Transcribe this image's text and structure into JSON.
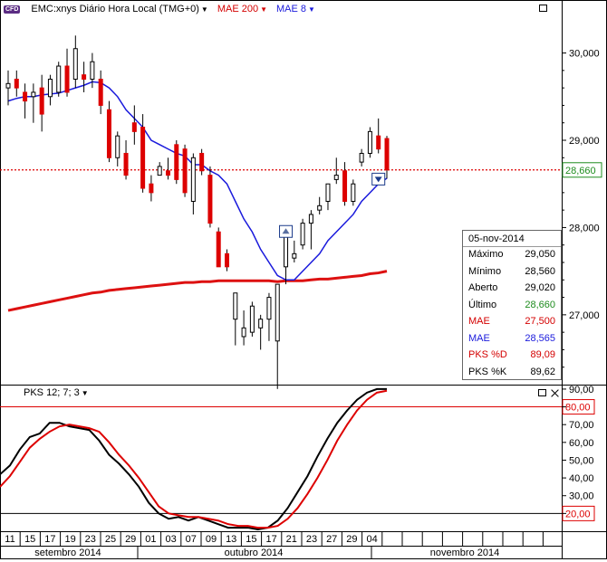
{
  "header": {
    "symbol_badge": "CFD",
    "title": "EMC:xnys Diário Hora Local (TMG+0)",
    "indicator1": "MAE 200",
    "indicator2": "MAE 8"
  },
  "info_panel": {
    "date": "05-nov-2014",
    "rows": [
      {
        "label": "Máximo",
        "value": "29,050",
        "label_color": "#000000",
        "value_color": "#000000"
      },
      {
        "label": "Mínimo",
        "value": "28,560",
        "label_color": "#000000",
        "value_color": "#000000"
      },
      {
        "label": "Aberto",
        "value": "29,020",
        "label_color": "#000000",
        "value_color": "#000000"
      },
      {
        "label": "Último",
        "value": "28,660",
        "label_color": "#000000",
        "value_color": "#1e8c1e"
      },
      {
        "label": "MAE",
        "value": "27,500",
        "label_color": "#d40000",
        "value_color": "#d40000"
      },
      {
        "label": "MAE",
        "value": "28,565",
        "label_color": "#1a1adc",
        "value_color": "#1a1adc"
      },
      {
        "label": "PKS %D",
        "value": "89,09",
        "label_color": "#d40000",
        "value_color": "#d40000"
      },
      {
        "label": "PKS %K",
        "value": "89,62",
        "label_color": "#000000",
        "value_color": "#000000"
      }
    ]
  },
  "sub_header": {
    "label": "PKS 12; 7; 3"
  },
  "colors": {
    "up": "#ffffff",
    "down": "#dd0000",
    "mae200": "#dd1111",
    "mae8": "#1a1adc",
    "pk": "#000000",
    "pd": "#dd0000",
    "last_price": "#1e8c1e"
  },
  "chart_data": [
    {
      "type": "candlestick",
      "ylim": [
        26.2,
        30.4
      ],
      "yticks": [
        "30,000",
        "29,000",
        "28,000",
        "27,000"
      ],
      "ytick_values": [
        30.0,
        29.0,
        28.0,
        27.0
      ],
      "last_price_label": "28,660",
      "last_price": 28.66,
      "x_labels": [
        "11",
        "15",
        "17",
        "19",
        "23",
        "25",
        "29",
        "01",
        "03",
        "07",
        "09",
        "13",
        "15",
        "17",
        "21",
        "23",
        "27",
        "29",
        "04"
      ],
      "months": [
        "setembro 2014",
        "outubro 2014",
        "novembro 2014"
      ],
      "candles": [
        {
          "o": 29.6,
          "h": 29.8,
          "l": 29.4,
          "c": 29.65
        },
        {
          "o": 29.7,
          "h": 29.8,
          "l": 29.5,
          "c": 29.6
        },
        {
          "o": 29.55,
          "h": 29.65,
          "l": 29.25,
          "c": 29.45
        },
        {
          "o": 29.5,
          "h": 29.65,
          "l": 29.2,
          "c": 29.55
        },
        {
          "o": 29.6,
          "h": 29.75,
          "l": 29.1,
          "c": 29.3
        },
        {
          "o": 29.5,
          "h": 29.75,
          "l": 29.4,
          "c": 29.7
        },
        {
          "o": 29.55,
          "h": 29.9,
          "l": 29.5,
          "c": 29.85
        },
        {
          "o": 29.85,
          "h": 30.05,
          "l": 29.5,
          "c": 29.55
        },
        {
          "o": 29.7,
          "h": 30.2,
          "l": 29.6,
          "c": 30.05
        },
        {
          "o": 29.75,
          "h": 29.9,
          "l": 29.55,
          "c": 29.7
        },
        {
          "o": 29.7,
          "h": 30.0,
          "l": 29.6,
          "c": 29.9
        },
        {
          "o": 29.7,
          "h": 29.8,
          "l": 29.3,
          "c": 29.4
        },
        {
          "o": 29.35,
          "h": 29.45,
          "l": 28.75,
          "c": 28.8
        },
        {
          "o": 28.8,
          "h": 29.1,
          "l": 28.7,
          "c": 29.05
        },
        {
          "o": 28.85,
          "h": 29.0,
          "l": 28.55,
          "c": 28.6
        },
        {
          "o": 29.2,
          "h": 29.4,
          "l": 28.95,
          "c": 29.1
        },
        {
          "o": 29.15,
          "h": 29.3,
          "l": 28.4,
          "c": 28.45
        },
        {
          "o": 28.5,
          "h": 28.6,
          "l": 28.3,
          "c": 28.4
        },
        {
          "o": 28.6,
          "h": 28.75,
          "l": 28.6,
          "c": 28.7
        },
        {
          "o": 28.65,
          "h": 28.8,
          "l": 28.55,
          "c": 28.6
        },
        {
          "o": 28.95,
          "h": 29.0,
          "l": 28.5,
          "c": 28.55
        },
        {
          "o": 28.9,
          "h": 28.95,
          "l": 28.35,
          "c": 28.4
        },
        {
          "o": 28.3,
          "h": 28.85,
          "l": 28.15,
          "c": 28.8
        },
        {
          "o": 28.85,
          "h": 28.9,
          "l": 28.6,
          "c": 28.65
        },
        {
          "o": 28.6,
          "h": 28.7,
          "l": 28.0,
          "c": 28.05
        },
        {
          "o": 27.95,
          "h": 28.0,
          "l": 27.55,
          "c": 27.55
        },
        {
          "o": 27.7,
          "h": 27.75,
          "l": 27.5,
          "c": 27.55
        },
        {
          "o": 26.95,
          "h": 27.25,
          "l": 26.65,
          "c": 27.25
        },
        {
          "o": 26.75,
          "h": 27.05,
          "l": 26.65,
          "c": 26.85
        },
        {
          "o": 26.8,
          "h": 27.15,
          "l": 26.75,
          "c": 27.1
        },
        {
          "o": 26.85,
          "h": 27.0,
          "l": 26.6,
          "c": 26.95
        },
        {
          "o": 26.95,
          "h": 27.25,
          "l": 26.7,
          "c": 27.2
        },
        {
          "o": 26.7,
          "h": 27.35,
          "l": 26.15,
          "c": 27.35
        },
        {
          "o": 27.55,
          "h": 28.0,
          "l": 27.35,
          "c": 27.9
        },
        {
          "o": 27.65,
          "h": 27.85,
          "l": 27.6,
          "c": 27.7
        },
        {
          "o": 27.8,
          "h": 28.1,
          "l": 27.75,
          "c": 28.05
        },
        {
          "o": 28.05,
          "h": 28.2,
          "l": 27.75,
          "c": 28.15
        },
        {
          "o": 28.2,
          "h": 28.35,
          "l": 28.15,
          "c": 28.25
        },
        {
          "o": 28.3,
          "h": 28.5,
          "l": 28.2,
          "c": 28.5
        },
        {
          "o": 28.55,
          "h": 28.8,
          "l": 28.5,
          "c": 28.6
        },
        {
          "o": 28.65,
          "h": 28.75,
          "l": 28.25,
          "c": 28.3
        },
        {
          "o": 28.3,
          "h": 28.55,
          "l": 28.25,
          "c": 28.5
        },
        {
          "o": 28.75,
          "h": 28.9,
          "l": 28.7,
          "c": 28.85
        },
        {
          "o": 28.85,
          "h": 29.15,
          "l": 28.8,
          "c": 29.1
        },
        {
          "o": 29.05,
          "h": 29.25,
          "l": 28.85,
          "c": 28.9
        },
        {
          "o": 29.02,
          "h": 29.05,
          "l": 28.56,
          "c": 28.66
        }
      ],
      "mae200": [
        27.05,
        27.07,
        27.09,
        27.11,
        27.13,
        27.15,
        27.17,
        27.19,
        27.21,
        27.23,
        27.25,
        27.26,
        27.28,
        27.29,
        27.3,
        27.31,
        27.32,
        27.33,
        27.34,
        27.35,
        27.36,
        27.37,
        27.37,
        27.38,
        27.38,
        27.39,
        27.39,
        27.39,
        27.39,
        27.39,
        27.39,
        27.39,
        27.38,
        27.39,
        27.39,
        27.39,
        27.4,
        27.41,
        27.41,
        27.42,
        27.43,
        27.44,
        27.45,
        27.47,
        27.48,
        27.5
      ],
      "mae8": [
        29.45,
        29.48,
        29.5,
        29.5,
        29.52,
        29.53,
        29.54,
        29.57,
        29.6,
        29.63,
        29.67,
        29.66,
        29.6,
        29.5,
        29.35,
        29.25,
        29.15,
        29.0,
        28.95,
        28.9,
        28.85,
        28.82,
        28.72,
        28.72,
        28.65,
        28.6,
        28.5,
        28.3,
        28.1,
        27.95,
        27.75,
        27.6,
        27.45,
        27.4,
        27.4,
        27.5,
        27.6,
        27.7,
        27.85,
        27.95,
        28.05,
        28.15,
        28.3,
        28.4,
        28.5,
        28.565
      ],
      "signals": [
        {
          "index": 33,
          "kind": "up",
          "price": 27.95
        },
        {
          "index": 44,
          "kind": "down",
          "price": 28.55
        }
      ]
    },
    {
      "type": "line",
      "title": "PKS 12; 7; 3",
      "ylim": [
        10,
        92
      ],
      "yticks": [
        "90,00",
        "80,00",
        "70,00",
        "60,00",
        "50,00",
        "40,00",
        "30,00",
        "20,00"
      ],
      "ytick_values": [
        90,
        80,
        70,
        60,
        50,
        40,
        30,
        20
      ],
      "levels": [
        {
          "value": 80,
          "label": "80,00"
        },
        {
          "value": 20,
          "label": "20,00"
        }
      ],
      "series": [
        {
          "name": "PKS %K",
          "values": [
            42,
            47,
            56,
            63,
            65,
            71,
            71,
            69,
            68,
            67,
            61,
            53,
            48,
            42,
            35,
            26,
            20,
            17,
            18,
            16,
            18,
            16,
            14,
            12,
            12,
            12,
            11,
            12,
            16,
            23,
            32,
            41,
            52,
            62,
            71,
            78,
            84,
            88,
            90,
            90
          ]
        },
        {
          "name": "PKS %D",
          "values": [
            35,
            41,
            49,
            57,
            62,
            66,
            69,
            70,
            69,
            68,
            66,
            60,
            53,
            47,
            40,
            32,
            24,
            20,
            19,
            18,
            18,
            17,
            16,
            14,
            13,
            13,
            12,
            12,
            13,
            17,
            23,
            31,
            40,
            50,
            61,
            70,
            78,
            84,
            88,
            89.09
          ]
        }
      ]
    }
  ]
}
